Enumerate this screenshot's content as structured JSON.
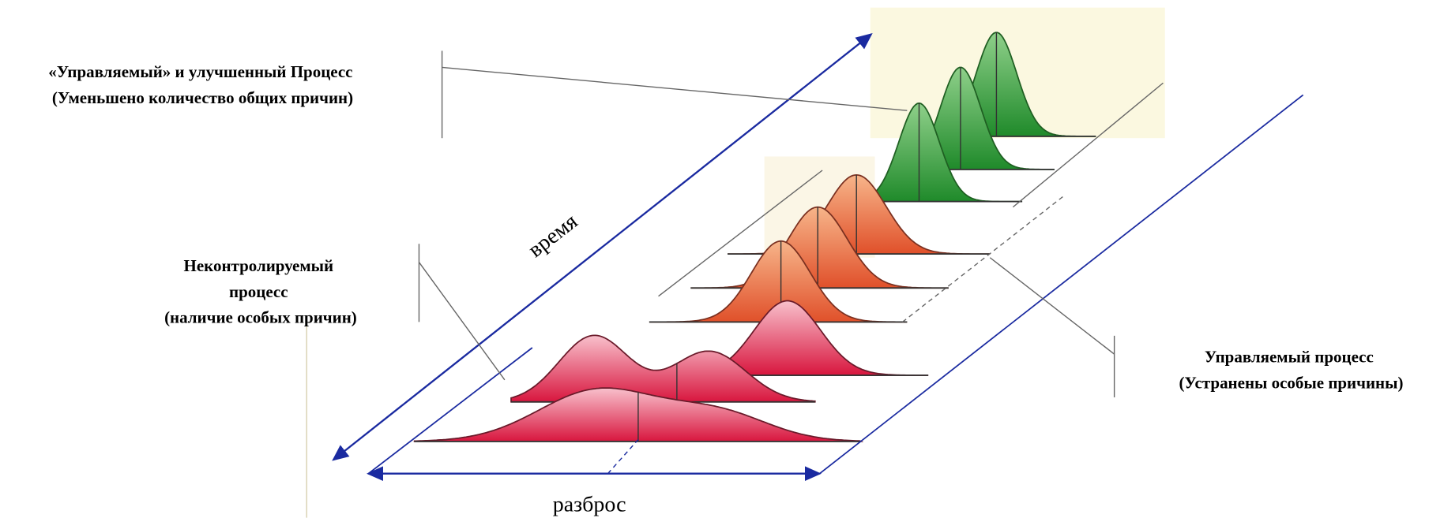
{
  "annotations": [
    {
      "lines": [
        "«Управляемый» и улучшенный Процесс",
        "(Уменьшено количество общих причин)"
      ]
    },
    {
      "lines": [
        "Неконтролируемый",
        "процесс",
        "(наличие особых причин)"
      ]
    },
    {
      "lines": [
        "Управляемый  процесс",
        "(Устранены особые причины)"
      ]
    }
  ],
  "axes": {
    "time": "время",
    "spread": "разброс"
  }
}
